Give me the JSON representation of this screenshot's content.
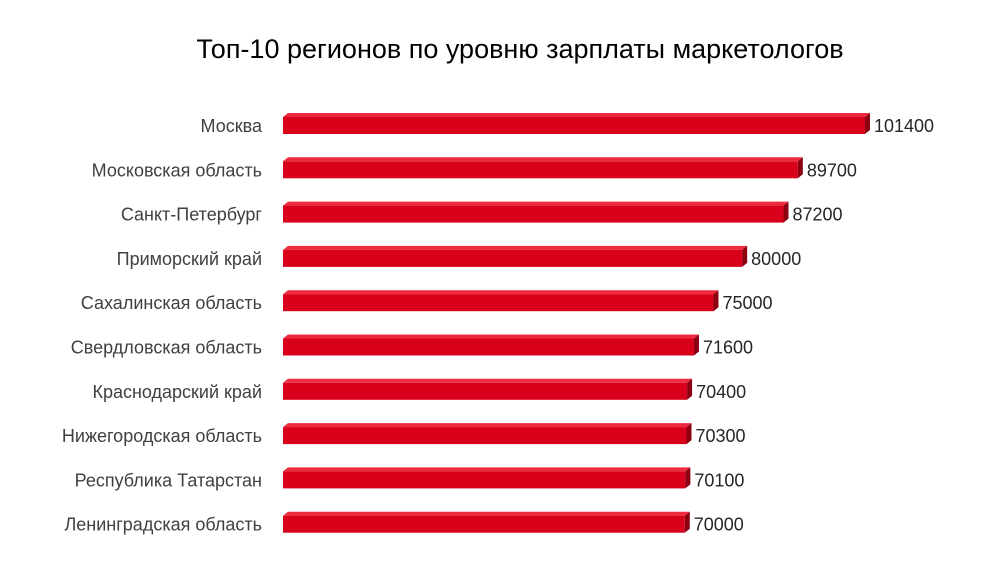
{
  "chart_data": {
    "type": "bar",
    "orientation": "horizontal",
    "title": "Топ-10 регионов по уровню зарплаты маркетологов",
    "xlabel": "",
    "ylabel": "",
    "xlim": [
      0,
      101400
    ],
    "grid": false,
    "legend": "none",
    "bar_color": "#d9001b",
    "bar_top_color": "#ee2a3f",
    "bar_side_color": "#8c0011",
    "categories": [
      "Москва",
      "Московская область",
      "Санкт-Петербург",
      "Приморский  край",
      "Сахалинская  область",
      "Свердловская область",
      "Краснодарский край",
      "Нижегородская область",
      "Республика  Татарстан",
      "Ленинградская область"
    ],
    "values": [
      101400,
      89700,
      87200,
      80000,
      75000,
      71600,
      70400,
      70300,
      70100,
      70000
    ]
  }
}
